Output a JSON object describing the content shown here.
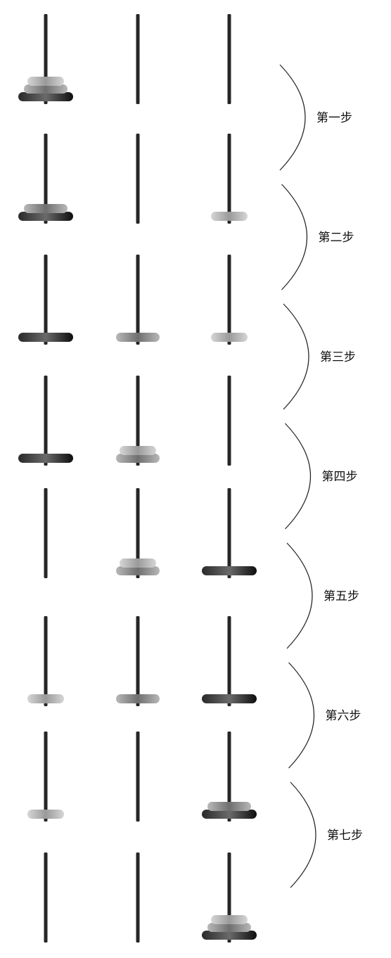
{
  "diagram": {
    "puzzle": "towers-of-hanoi",
    "pegs": [
      "A",
      "B",
      "C"
    ],
    "disks": [
      {
        "id": 1,
        "size": "small",
        "shade": "#b3b3b3"
      },
      {
        "id": 2,
        "size": "medium",
        "shade": "#8c8c8c"
      },
      {
        "id": 3,
        "size": "large",
        "shade": "#151515"
      }
    ],
    "states": [
      [
        [
          3,
          2,
          1
        ],
        [],
        []
      ],
      [
        [
          3,
          2
        ],
        [],
        [
          1
        ]
      ],
      [
        [
          3
        ],
        [
          2
        ],
        [
          1
        ]
      ],
      [
        [
          3
        ],
        [
          2,
          1
        ],
        []
      ],
      [
        [],
        [
          2,
          1
        ],
        [
          3
        ]
      ],
      [
        [
          1
        ],
        [
          2
        ],
        [
          3
        ]
      ],
      [
        [
          1
        ],
        [],
        [
          3,
          2
        ]
      ],
      [
        [],
        [],
        [
          3,
          2,
          1
        ]
      ]
    ],
    "steps": [
      {
        "label": "第一步"
      },
      {
        "label": "第二步"
      },
      {
        "label": "第三步"
      },
      {
        "label": "第四步"
      },
      {
        "label": "第五步"
      },
      {
        "label": "第六步"
      },
      {
        "label": "第七步"
      }
    ]
  }
}
